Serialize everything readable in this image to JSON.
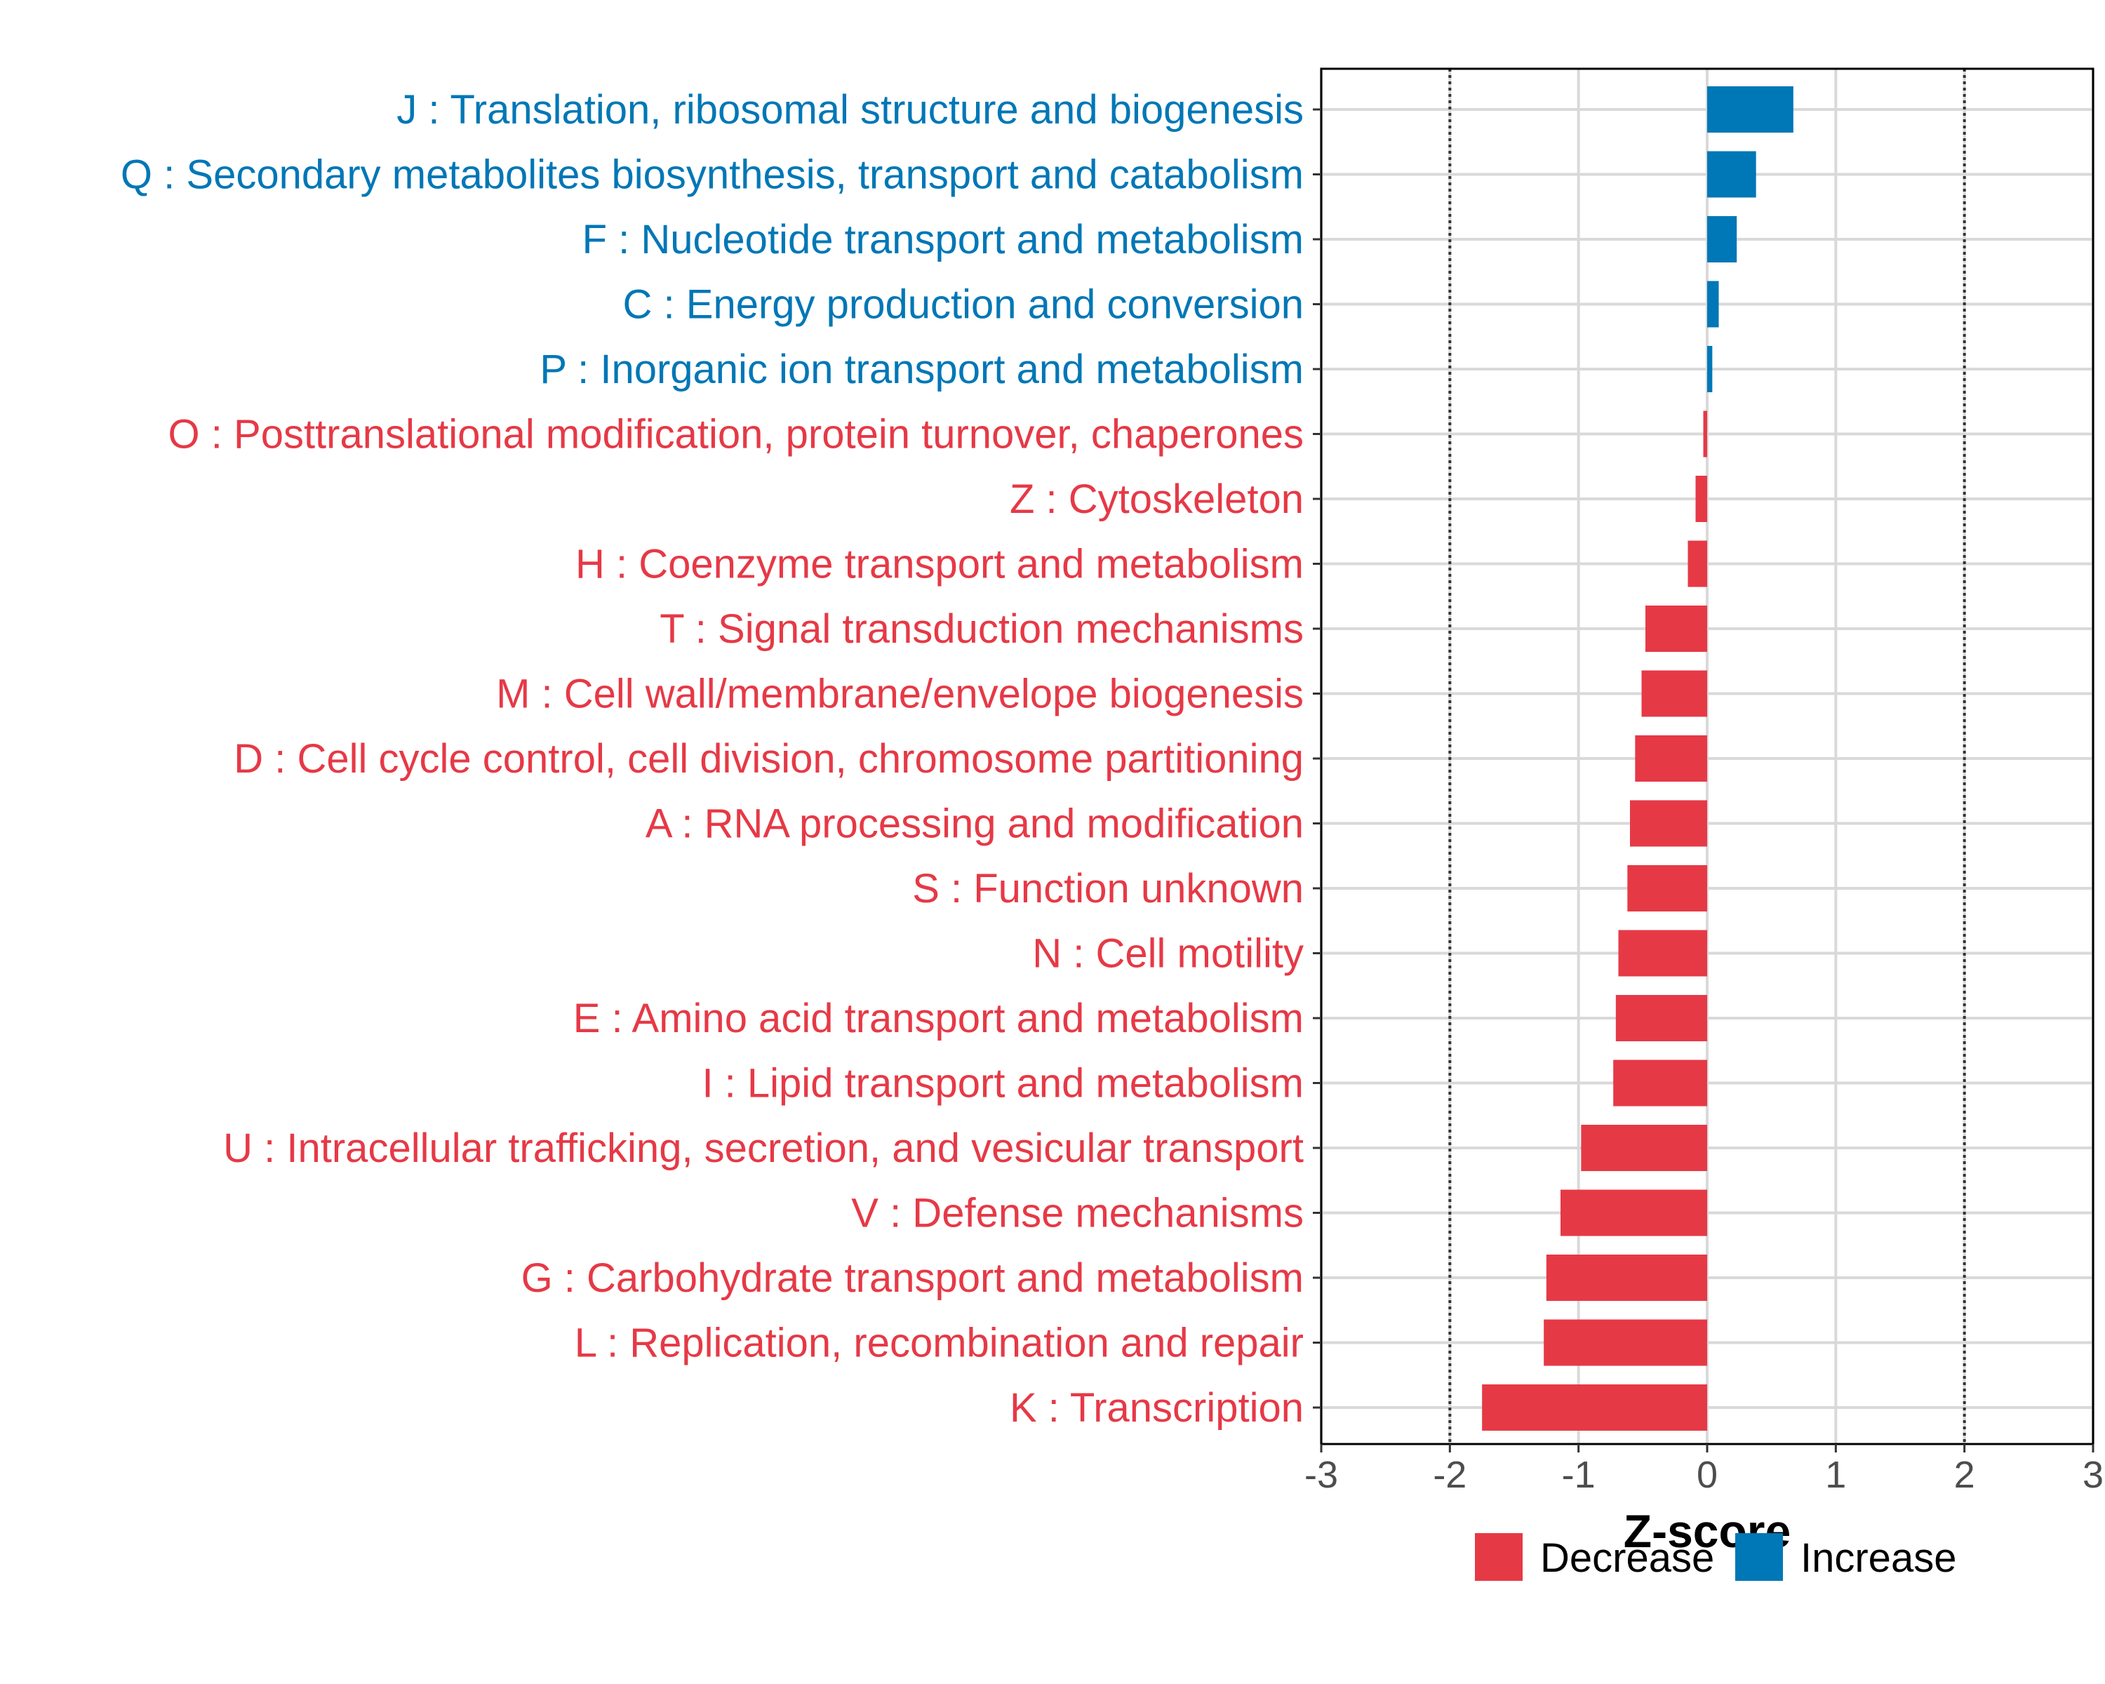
{
  "chart_data": {
    "type": "bar",
    "orientation": "horizontal",
    "title": "",
    "xlabel": "Z-score",
    "ylabel": "",
    "xlim": [
      -3,
      3
    ],
    "xticks": [
      -3,
      -2,
      -1,
      0,
      1,
      2,
      3
    ],
    "xtick_labels": [
      "-3",
      "-2",
      "-1",
      "0",
      "1",
      "2",
      "3"
    ],
    "reference_lines": [
      -2,
      2
    ],
    "grid": true,
    "categories": [
      "J : Translation, ribosomal structure and biogenesis",
      "Q : Secondary metabolites biosynthesis, transport and catabolism",
      "F : Nucleotide transport and metabolism",
      "C : Energy production and conversion",
      "P : Inorganic ion transport and metabolism",
      "O : Posttranslational modification, protein turnover, chaperones",
      "Z : Cytoskeleton",
      "H : Coenzyme transport and metabolism",
      "T : Signal transduction mechanisms",
      "M : Cell wall/membrane/envelope biogenesis",
      "D : Cell cycle control, cell division, chromosome partitioning",
      "A : RNA processing and modification",
      "S : Function unknown",
      "N : Cell motility",
      "E : Amino acid transport and metabolism",
      "I : Lipid transport and metabolism",
      "U : Intracellular trafficking, secretion, and vesicular transport",
      "V : Defense mechanisms",
      "G : Carbohydrate transport and metabolism",
      "L : Replication, recombination and repair",
      "K : Transcription"
    ],
    "values": [
      0.67,
      0.38,
      0.23,
      0.09,
      0.04,
      -0.03,
      -0.09,
      -0.15,
      -0.48,
      -0.51,
      -0.56,
      -0.6,
      -0.62,
      -0.69,
      -0.71,
      -0.73,
      -0.98,
      -1.14,
      -1.25,
      -1.27,
      -1.75
    ],
    "legend": {
      "position": "bottom",
      "entries": [
        {
          "label": "Decrease",
          "color": "#e63946"
        },
        {
          "label": "Increase",
          "color": "#0077b6"
        }
      ]
    },
    "colors": {
      "increase": "#0077b6",
      "decrease": "#e63946"
    }
  }
}
